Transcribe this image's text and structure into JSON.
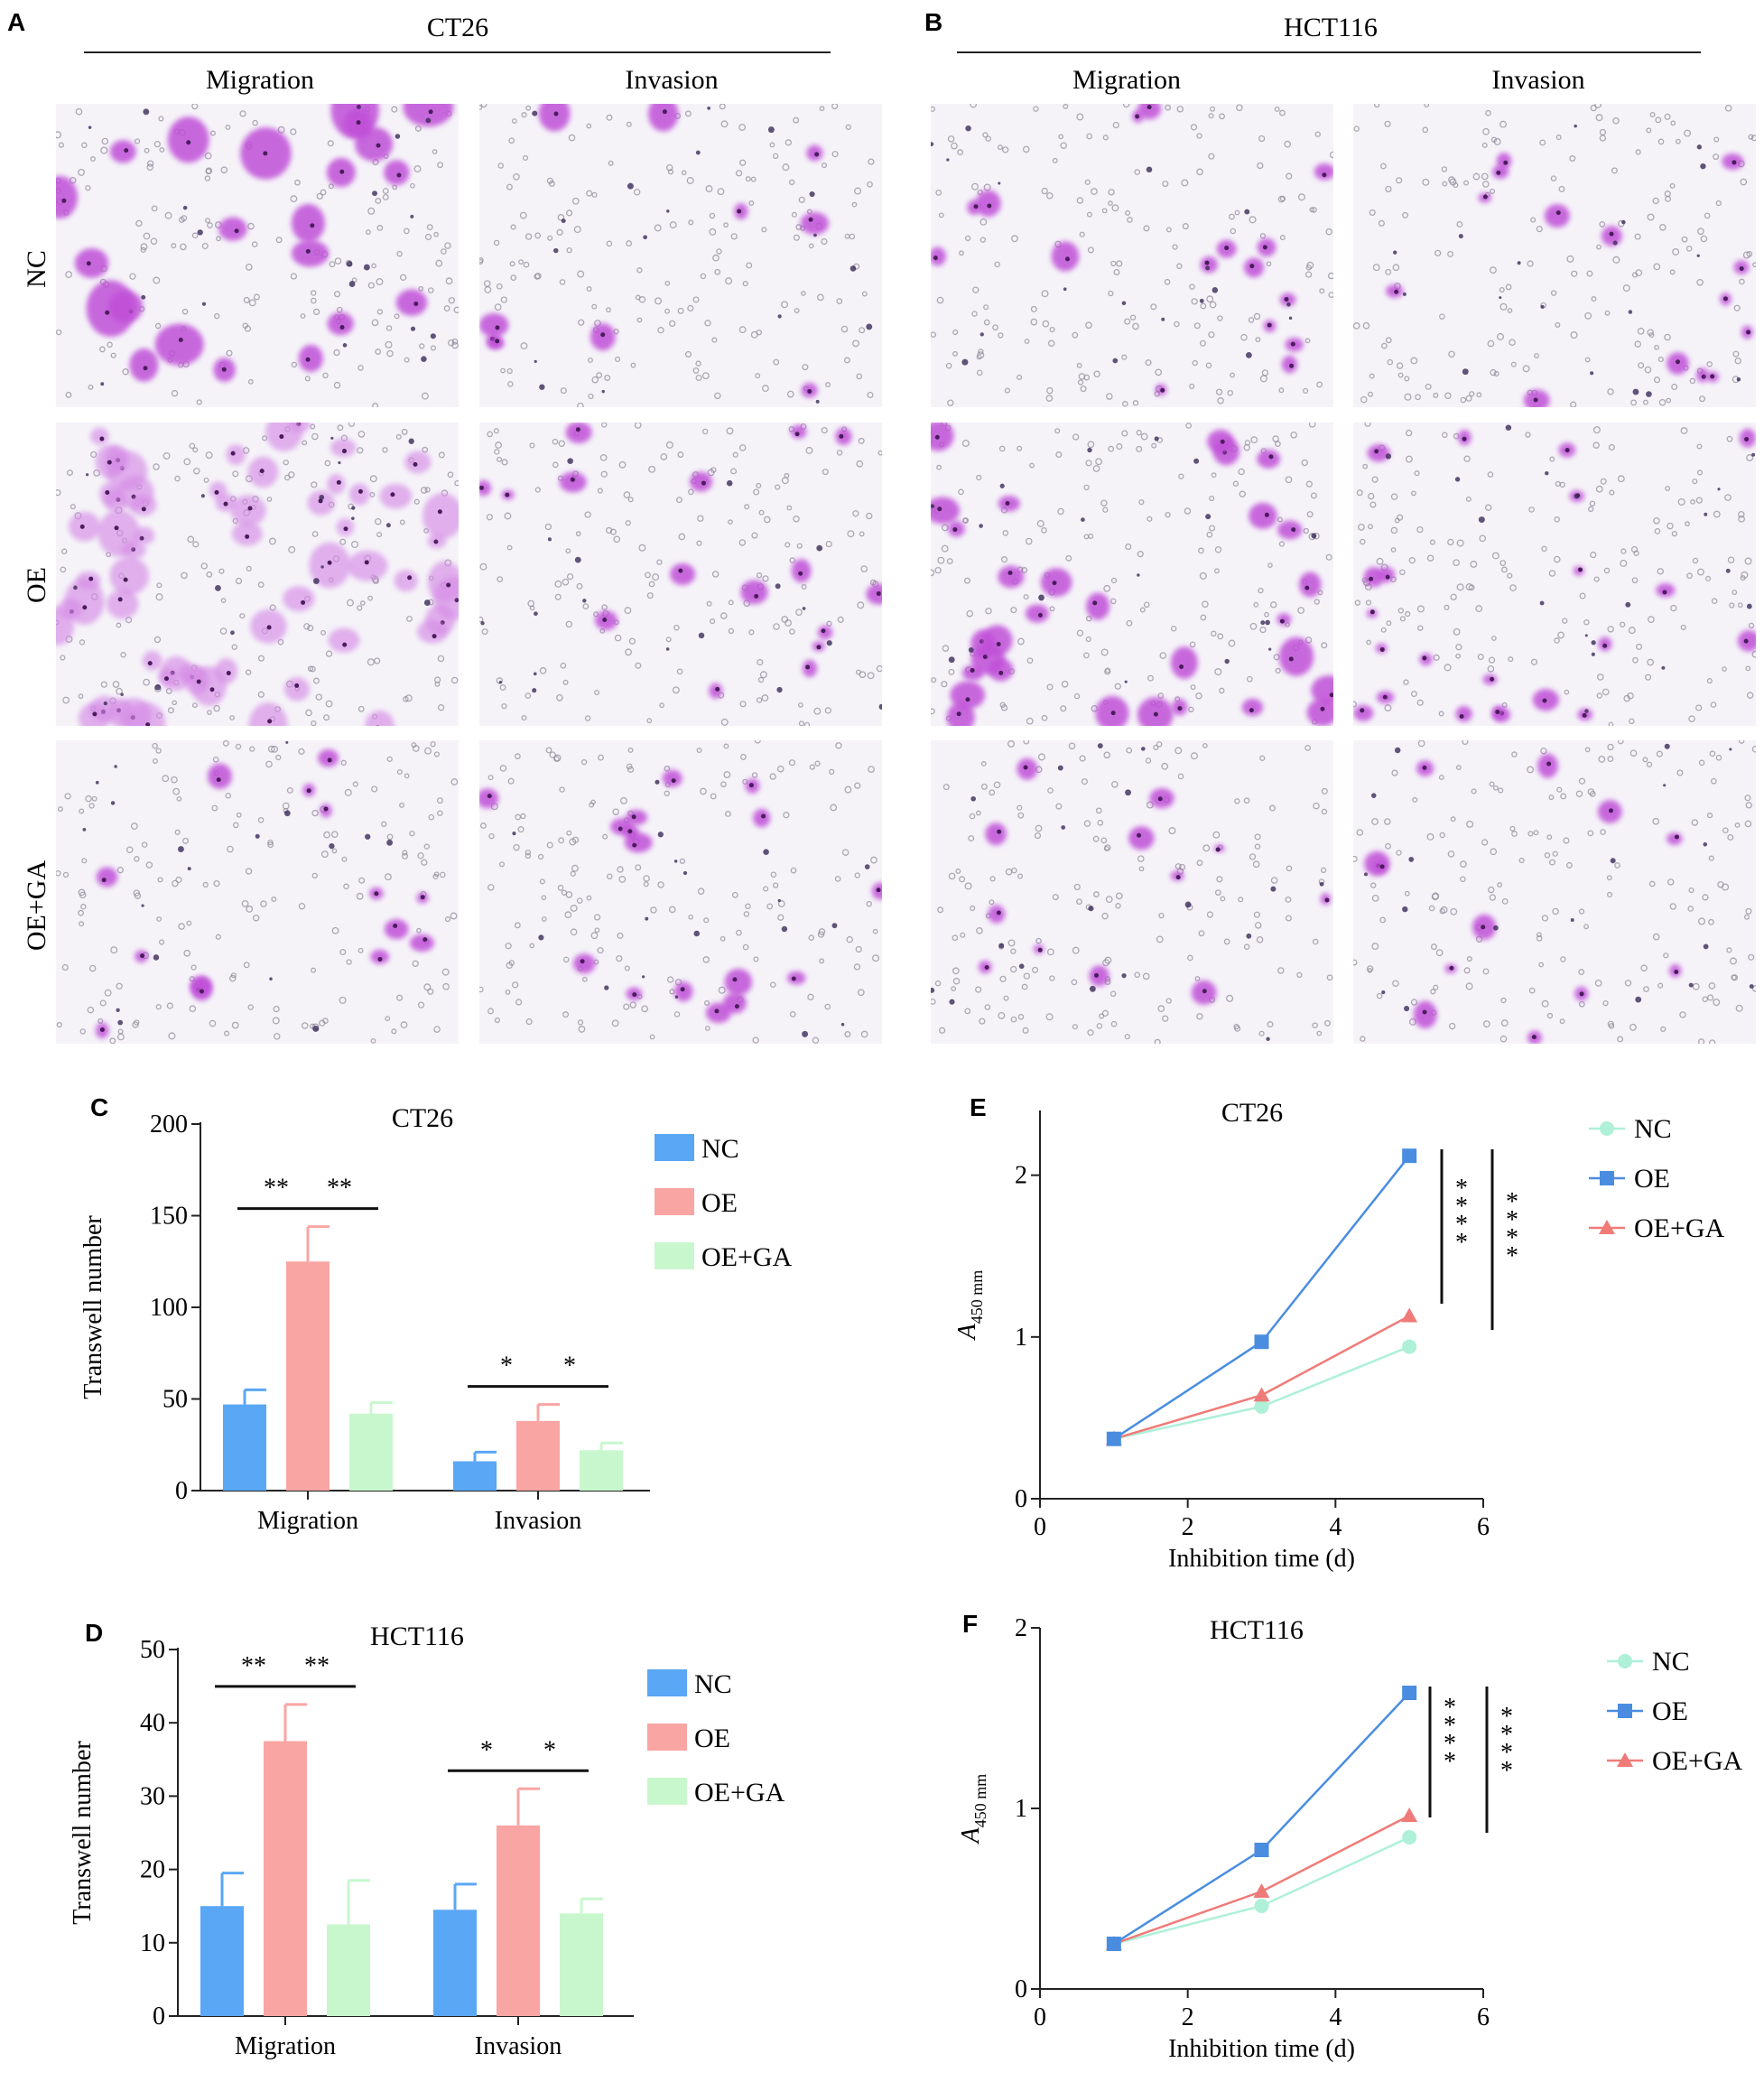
{
  "panels": {
    "A": {
      "letter": "A",
      "cell_line": "CT26",
      "columns": [
        "Migration",
        "Invasion"
      ],
      "rows": [
        "NC",
        "OE",
        "OE+GA"
      ]
    },
    "B": {
      "letter": "B",
      "cell_line": "HCT116",
      "columns": [
        "Migration",
        "Invasion"
      ]
    }
  },
  "colors": {
    "NC": "#5aa7f5",
    "OE": "#f9a5a3",
    "OE_GA": "#c8f7cd",
    "NC_line": "#aef0d8",
    "OE_line": "#4a8de0",
    "OE_GA_line": "#ef7b78"
  },
  "chart_data": [
    {
      "letter": "C",
      "type": "bar",
      "title": "CT26",
      "ylabel": "Transwell number",
      "ylim": [
        0,
        200
      ],
      "yticks": [
        "0",
        "50",
        "100",
        "150",
        "200"
      ],
      "categories": [
        "Migration",
        "Invasion"
      ],
      "series": [
        {
          "name": "NC",
          "values": [
            47,
            16
          ],
          "errors": [
            8,
            5
          ]
        },
        {
          "name": "OE",
          "values": [
            125,
            38
          ],
          "errors": [
            19,
            9
          ]
        },
        {
          "name": "OE+GA",
          "values": [
            42,
            22
          ],
          "errors": [
            6,
            4
          ]
        }
      ],
      "significance": [
        [
          "**",
          "**"
        ],
        [
          "*",
          "*"
        ]
      ]
    },
    {
      "letter": "D",
      "type": "bar",
      "title": "HCT116",
      "ylabel": "Transwell number",
      "ylim": [
        0,
        50
      ],
      "yticks": [
        "0",
        "10",
        "20",
        "30",
        "40",
        "50"
      ],
      "categories": [
        "Migration",
        "Invasion"
      ],
      "series": [
        {
          "name": "NC",
          "values": [
            15,
            14.5
          ],
          "errors": [
            4.5,
            3.5
          ]
        },
        {
          "name": "OE",
          "values": [
            37.5,
            26
          ],
          "errors": [
            5,
            5
          ]
        },
        {
          "name": "OE+GA",
          "values": [
            12.5,
            14
          ],
          "errors": [
            6,
            2
          ]
        }
      ],
      "significance": [
        [
          "**",
          "**"
        ],
        [
          "*",
          "*"
        ]
      ]
    },
    {
      "letter": "E",
      "type": "line",
      "title": "CT26",
      "xlabel": "Inhibition time (d)",
      "ylabel_main": "A",
      "ylabel_sub": "450 mm",
      "xlim": [
        0,
        6
      ],
      "ylim": [
        0,
        2.4
      ],
      "xticks": [
        "0",
        "2",
        "4",
        "6"
      ],
      "yticks": [
        "0",
        "1",
        "2"
      ],
      "x": [
        1,
        3,
        5
      ],
      "series": [
        {
          "name": "NC",
          "values": [
            0.37,
            0.57,
            0.94
          ]
        },
        {
          "name": "OE",
          "values": [
            0.37,
            0.97,
            2.12
          ]
        },
        {
          "name": "OE+GA",
          "values": [
            0.37,
            0.64,
            1.13
          ]
        }
      ],
      "significance": [
        "****",
        "****"
      ]
    },
    {
      "letter": "F",
      "type": "line",
      "title": "HCT116",
      "xlabel": "Inhibition time (d)",
      "ylabel_main": "A",
      "ylabel_sub": "450 mm",
      "xlim": [
        0,
        6
      ],
      "ylim": [
        0,
        2
      ],
      "xticks": [
        "0",
        "2",
        "4",
        "6"
      ],
      "yticks": [
        "0",
        "1",
        "2"
      ],
      "x": [
        1,
        3,
        5
      ],
      "series": [
        {
          "name": "NC",
          "values": [
            0.25,
            0.46,
            0.84
          ]
        },
        {
          "name": "OE",
          "values": [
            0.25,
            0.77,
            1.64
          ]
        },
        {
          "name": "OE+GA",
          "values": [
            0.25,
            0.54,
            0.96
          ]
        }
      ],
      "significance": [
        "****",
        "****"
      ]
    }
  ]
}
